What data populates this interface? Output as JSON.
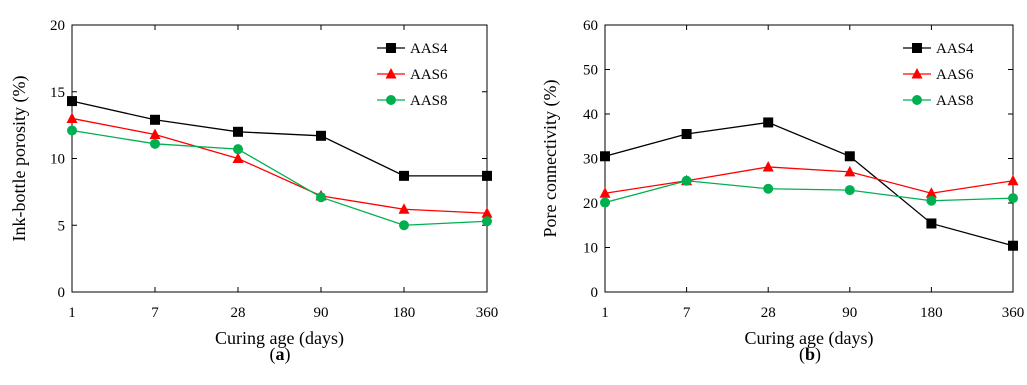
{
  "chart_data": [
    {
      "type": "line",
      "categories": [
        "1",
        "7",
        "28",
        "90",
        "180",
        "360"
      ],
      "xlabel": "Curing age (days)",
      "ylabel": "Ink-bottle porosity (%)",
      "ylim": [
        0,
        20
      ],
      "yticks": [
        "0",
        "5",
        "10",
        "15",
        "20"
      ],
      "grid": false,
      "legend_position": "top-right",
      "caption_prefix": "(",
      "caption_letter": "a",
      "caption_suffix": ")",
      "series": [
        {
          "name": "AAS4",
          "color": "#000000",
          "marker": "square",
          "values": [
            14.3,
            12.9,
            12.0,
            11.7,
            8.7,
            8.7
          ]
        },
        {
          "name": "AAS6",
          "color": "#ff0000",
          "marker": "triangle",
          "values": [
            13.0,
            11.8,
            10.0,
            7.2,
            6.2,
            5.9
          ]
        },
        {
          "name": "AAS8",
          "color": "#00b050",
          "marker": "circle",
          "values": [
            12.1,
            11.1,
            10.7,
            7.1,
            5.0,
            5.3
          ]
        }
      ]
    },
    {
      "type": "line",
      "categories": [
        "1",
        "7",
        "28",
        "90",
        "180",
        "360"
      ],
      "xlabel": "Curing age (days)",
      "ylabel": "Pore connectivity (%)",
      "ylim": [
        0,
        60
      ],
      "yticks": [
        "0",
        "10",
        "20",
        "30",
        "40",
        "50",
        "60"
      ],
      "grid": false,
      "legend_position": "top-right",
      "caption_prefix": "(",
      "caption_letter": "b",
      "caption_suffix": ")",
      "series": [
        {
          "name": "AAS4",
          "color": "#000000",
          "marker": "square",
          "values": [
            30.5,
            35.5,
            38.1,
            30.5,
            15.4,
            10.4
          ]
        },
        {
          "name": "AAS6",
          "color": "#ff0000",
          "marker": "triangle",
          "values": [
            22.2,
            25.0,
            28.1,
            27.0,
            22.2,
            25.0
          ]
        },
        {
          "name": "AAS8",
          "color": "#00b050",
          "marker": "circle",
          "values": [
            20.1,
            25.0,
            23.2,
            22.9,
            20.5,
            21.1
          ]
        }
      ]
    }
  ]
}
